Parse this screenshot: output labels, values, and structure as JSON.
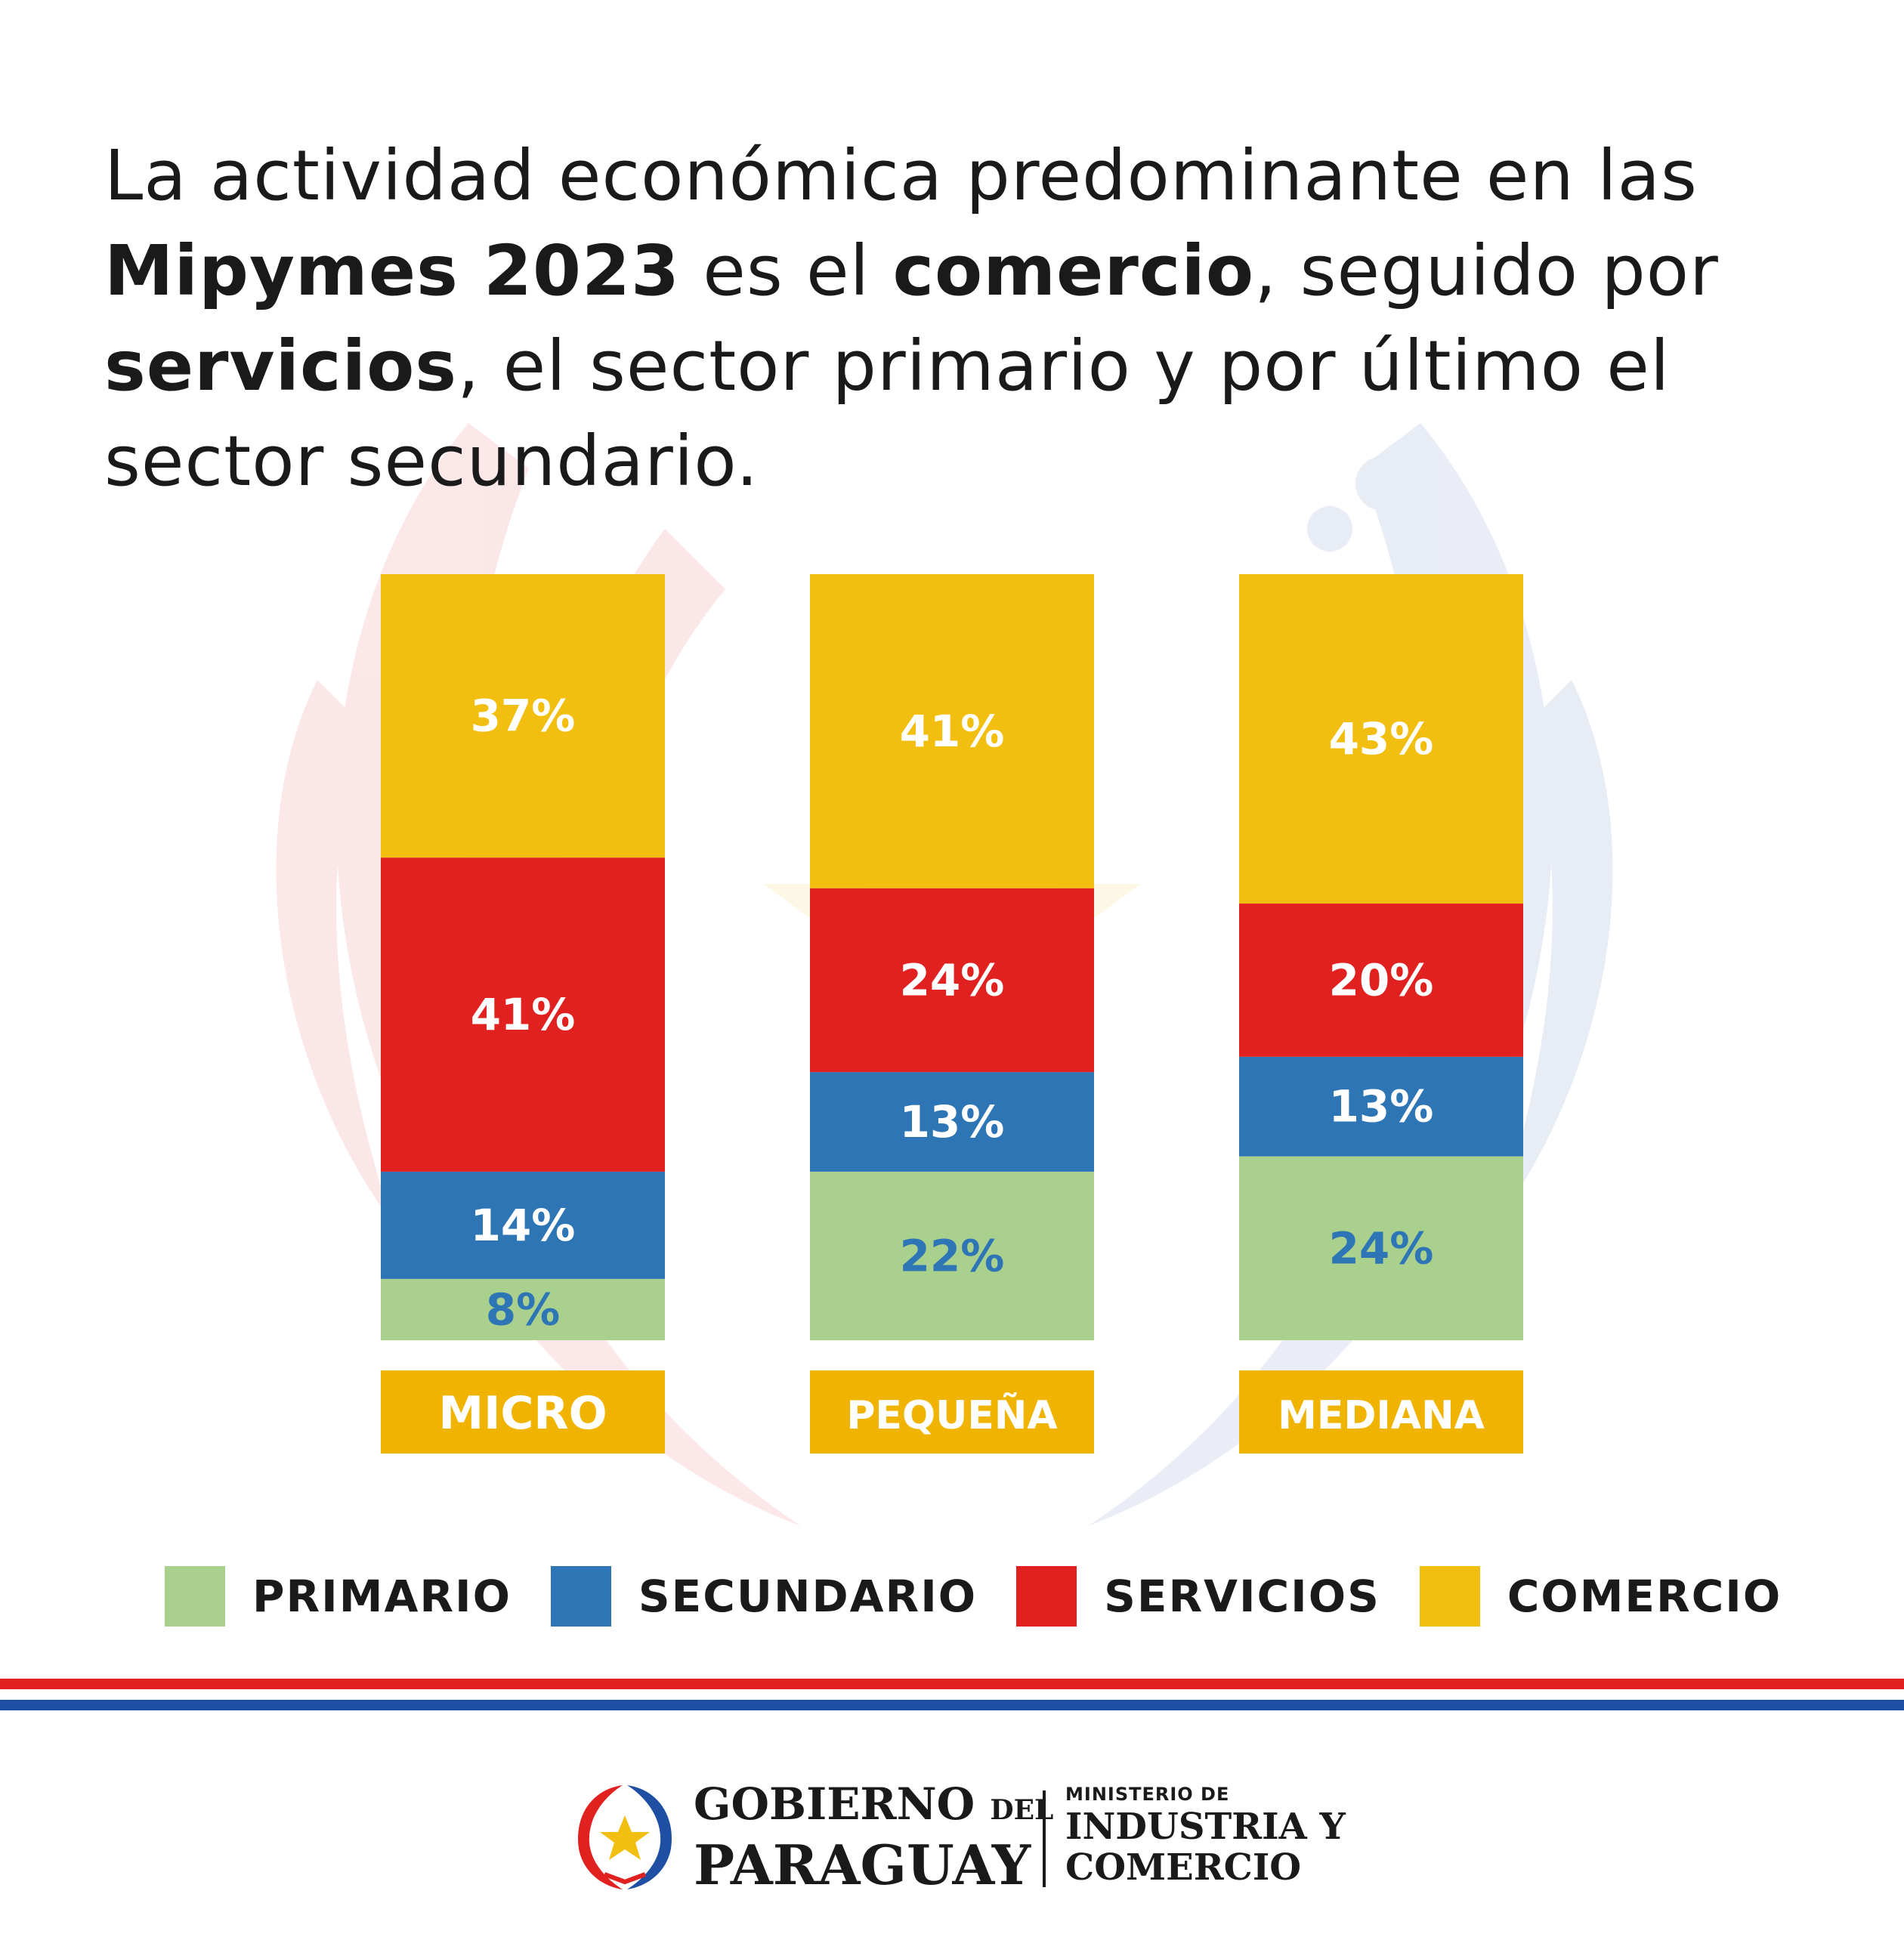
{
  "headline": {
    "t1": "La actividad económica predominante en las ",
    "b1": "Mipymes 2023",
    "t2": " es el ",
    "b2": "comercio",
    "t3": ", seguido por ",
    "b3": "servicios",
    "t4": ", el sector primario y por último el sector secundario."
  },
  "chart_data": {
    "type": "bar",
    "stacked": true,
    "categories": [
      "MICRO",
      "PEQUEÑA",
      "MEDIANA"
    ],
    "series": [
      {
        "name": "PRIMARIO",
        "color": "#aad08e",
        "label_color": "#2e75b6",
        "values": [
          8,
          22,
          24
        ]
      },
      {
        "name": "SECUNDARIO",
        "color": "#2e75b6",
        "label_color": "#ffffff",
        "values": [
          14,
          13,
          13
        ]
      },
      {
        "name": "SERVICIOS",
        "color": "#e1211f",
        "label_color": "#ffffff",
        "values": [
          41,
          24,
          20
        ]
      },
      {
        "name": "COMERCIO",
        "color": "#f2be0f",
        "label_color": "#ffffff",
        "values": [
          37,
          41,
          43
        ]
      }
    ],
    "value_suffix": "%",
    "category_label_bg": "#f0b400",
    "legend_position": "bottom",
    "grid": false
  },
  "footer": {
    "gov_line1": "GOBIERNO",
    "gov_del": "DEL",
    "gov_line2": "PARAGUAY",
    "min_line1": "MINISTERIO DE",
    "min_line2": "INDUSTRIA Y",
    "min_line3": "COMERCIO",
    "flag_red": "#e1211f",
    "flag_blue": "#1f4fa3"
  },
  "icons": [
    "paraguay-seal-icon",
    "star-icon"
  ]
}
